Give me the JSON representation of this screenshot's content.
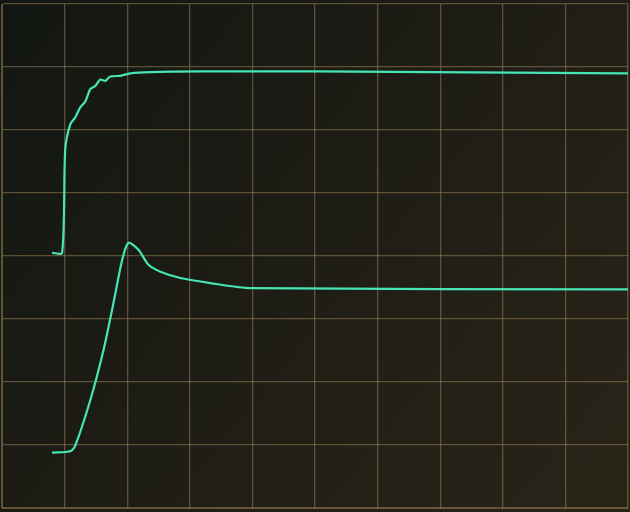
{
  "chart_data": {
    "type": "line",
    "xlim": [
      0,
      10
    ],
    "xticks": [
      0,
      1,
      2,
      3,
      4,
      5,
      6,
      7,
      8,
      9,
      10
    ],
    "ylim": [
      0,
      8
    ],
    "yticks": [
      0,
      1,
      2,
      3,
      4,
      5,
      6,
      7,
      8
    ],
    "grid": true,
    "tick_labels": false,
    "series": [
      {
        "color": "#45e6b4",
        "x": [
          0.8,
          0.96,
          1.01,
          1.09,
          1.17,
          1.25,
          1.33,
          1.41,
          1.49,
          1.57,
          1.65,
          1.73,
          1.89,
          2.05,
          2.37,
          3.17,
          5.0,
          10.0
        ],
        "values": [
          4.05,
          4.05,
          5.69,
          6.09,
          6.2,
          6.36,
          6.45,
          6.65,
          6.7,
          6.8,
          6.78,
          6.85,
          6.86,
          6.9,
          6.92,
          6.93,
          6.93,
          6.9
        ]
      },
      {
        "color": "#45e6b4",
        "x": [
          0.8,
          1.09,
          1.17,
          1.41,
          1.62,
          1.79,
          1.92,
          2.02,
          2.18,
          2.34,
          2.53,
          2.85,
          3.33,
          3.97,
          10.0
        ],
        "values": [
          0.88,
          0.9,
          0.99,
          1.71,
          2.5,
          3.3,
          3.94,
          4.21,
          4.1,
          3.86,
          3.75,
          3.65,
          3.57,
          3.49,
          3.47
        ]
      }
    ]
  }
}
